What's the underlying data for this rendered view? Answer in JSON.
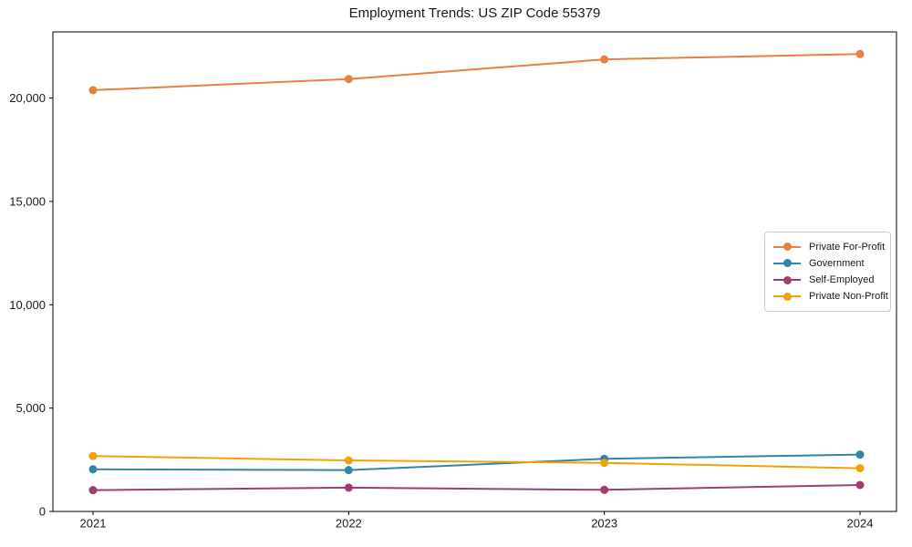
{
  "page_title": "Employment Trends: US ZIP Code 55379",
  "chart_data": {
    "type": "line",
    "title": "Employment Trends: US ZIP Code 55379",
    "xlabel": "",
    "ylabel": "",
    "x": [
      2021,
      2022,
      2023,
      2024
    ],
    "xtick_labels": [
      "2021",
      "2022",
      "2023",
      "2024"
    ],
    "yticks": [
      0,
      5000,
      10000,
      15000,
      20000
    ],
    "ytick_labels": [
      "0",
      "5,000",
      "10,000",
      "15,000",
      "20,000"
    ],
    "ylim": [
      0,
      23200
    ],
    "grid": false,
    "legend_position": "center right",
    "marker": "circle",
    "axis_color": "#000000",
    "series": [
      {
        "name": "Private For-Profit",
        "color": "#E8803E",
        "values": [
          20380,
          20920,
          21870,
          22130
        ]
      },
      {
        "name": "Government",
        "color": "#2E86A8",
        "values": [
          2040,
          2000,
          2545,
          2750
        ]
      },
      {
        "name": "Self-Employed",
        "color": "#A23B72",
        "values": [
          1030,
          1150,
          1045,
          1280
        ]
      },
      {
        "name": "Private Non-Profit",
        "color": "#F0A202",
        "values": [
          2680,
          2470,
          2350,
          2090
        ]
      }
    ]
  }
}
